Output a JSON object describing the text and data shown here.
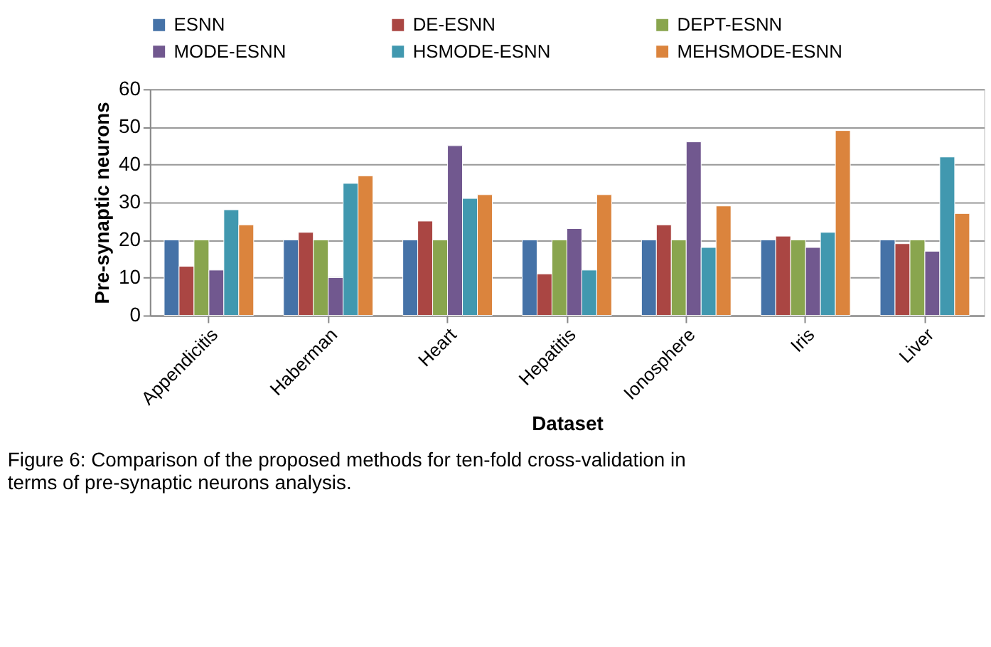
{
  "chart_data": {
    "type": "bar",
    "xlabel": "Dataset",
    "ylabel": "Pre-synaptic neurons",
    "categories": [
      "Appendicitis",
      "Haberman",
      "Heart",
      "Hepatitis",
      "Ionosphere",
      "Iris",
      "Liver"
    ],
    "series": [
      {
        "name": "ESNN",
        "color": "#4572a7",
        "values": [
          20,
          20,
          20,
          20,
          20,
          20,
          20
        ]
      },
      {
        "name": "DE-ESNN",
        "color": "#aa4643",
        "values": [
          13,
          22,
          25,
          11,
          24,
          21,
          19
        ]
      },
      {
        "name": "DEPT-ESNN",
        "color": "#89a54e",
        "values": [
          20,
          20,
          20,
          20,
          20,
          20,
          20
        ]
      },
      {
        "name": "MODE-ESNN",
        "color": "#71588f",
        "values": [
          12,
          10,
          45,
          23,
          46,
          18,
          17
        ]
      },
      {
        "name": "HSMODE-ESNN",
        "color": "#4198af",
        "values": [
          28,
          35,
          31,
          12,
          18,
          22,
          42
        ]
      },
      {
        "name": "MEHSMODE-ESNN",
        "color": "#db843d",
        "values": [
          24,
          37,
          32,
          32,
          29,
          49,
          27
        ]
      }
    ],
    "ylim": [
      0,
      60
    ],
    "yticks": [
      0,
      10,
      20,
      30,
      40,
      50,
      60
    ],
    "grid": "y",
    "legend": "top",
    "annotations": [
      "Figure 6: Comparison of the proposed methods for ten-fold cross-validation in terms of pre-synaptic neurons analysis."
    ]
  }
}
